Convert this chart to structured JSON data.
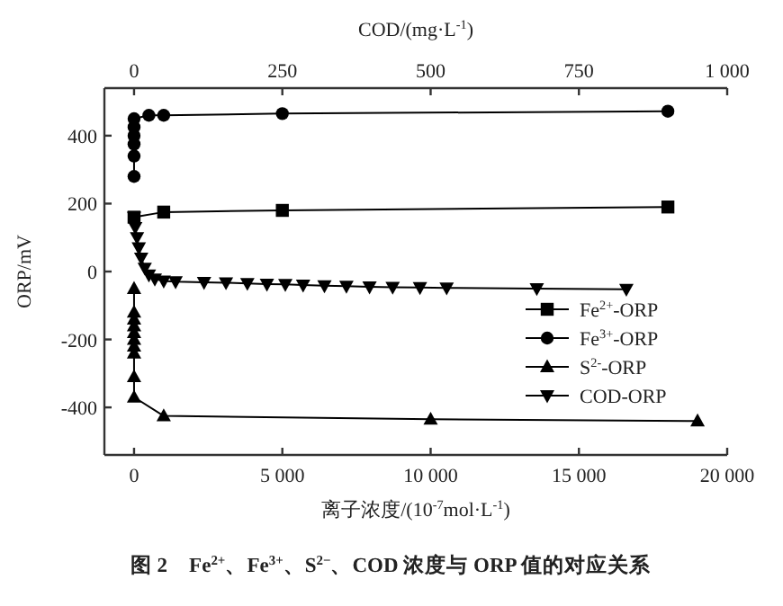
{
  "chart_data": {
    "type": "line",
    "xlabel": "离子浓度/(10$^{-7}$mol·L$^{-1}$)",
    "x2label": "COD/(mg·L$^{-1}$)",
    "ylabel": "ORP/mV",
    "annotations": [
      "图 2　Fe$^{2+}$、Fe$^{3+}$、S$^{2−}$、COD 浓度与 ORP 值的对应关系"
    ],
    "xlim": [
      -1000,
      20000
    ],
    "xticks": [
      0,
      {
        "value": 5000,
        "label": "5 000"
      },
      {
        "value": 10000,
        "label": "10 000"
      },
      {
        "value": 15000,
        "label": "15 000"
      },
      {
        "value": 20000,
        "label": "20 000"
      }
    ],
    "x2lim": [
      -50,
      1000
    ],
    "x2ticks": [
      0,
      250,
      500,
      750,
      {
        "value": 1000,
        "label": "1 000"
      }
    ],
    "ylim": [
      -540,
      540
    ],
    "yticks": [
      -400,
      -200,
      0,
      200,
      400
    ],
    "legend": "right",
    "grid": false,
    "line_style": "solid",
    "series": [
      {
        "name": "Fe$^{2+}$-ORP",
        "color": "#000000",
        "marker": "square",
        "x": [
          0,
          1000,
          5000,
          18000
        ],
        "values": [
          160,
          175,
          180,
          190
        ]
      },
      {
        "name": "Fe$^{3+}$-ORP",
        "color": "#000000",
        "marker": "circle",
        "x": [
          0,
          0,
          0,
          0,
          0,
          0,
          500,
          1000,
          5000,
          18000
        ],
        "values": [
          280,
          340,
          375,
          400,
          425,
          450,
          460,
          460,
          465,
          472
        ]
      },
      {
        "name": "S$^{2-}$-ORP",
        "color": "#000000",
        "marker": "triangle",
        "x": [
          0,
          0,
          0,
          0,
          0,
          0,
          0,
          0,
          0,
          0,
          1000,
          10000,
          19000
        ],
        "values": [
          -50,
          -120,
          -140,
          -160,
          -180,
          -200,
          -220,
          -240,
          -310,
          -370,
          -425,
          -435,
          -440
        ]
      },
      {
        "name": "COD-ORP",
        "color": "#000000",
        "marker": "triangle-down",
        "axis": "x2",
        "x": [
          0,
          2,
          5,
          8,
          12,
          18,
          25,
          35,
          50,
          70,
          118,
          155,
          191,
          224,
          255,
          285,
          321,
          358,
          397,
          436,
          482,
          527,
          679,
          830
        ],
        "values": [
          160,
          130,
          100,
          70,
          40,
          10,
          -10,
          -22,
          -28,
          -30,
          -32,
          -33,
          -35,
          -37,
          -38,
          -40,
          -42,
          -43,
          -45,
          -46,
          -47,
          -48,
          -50,
          -52
        ]
      }
    ]
  }
}
